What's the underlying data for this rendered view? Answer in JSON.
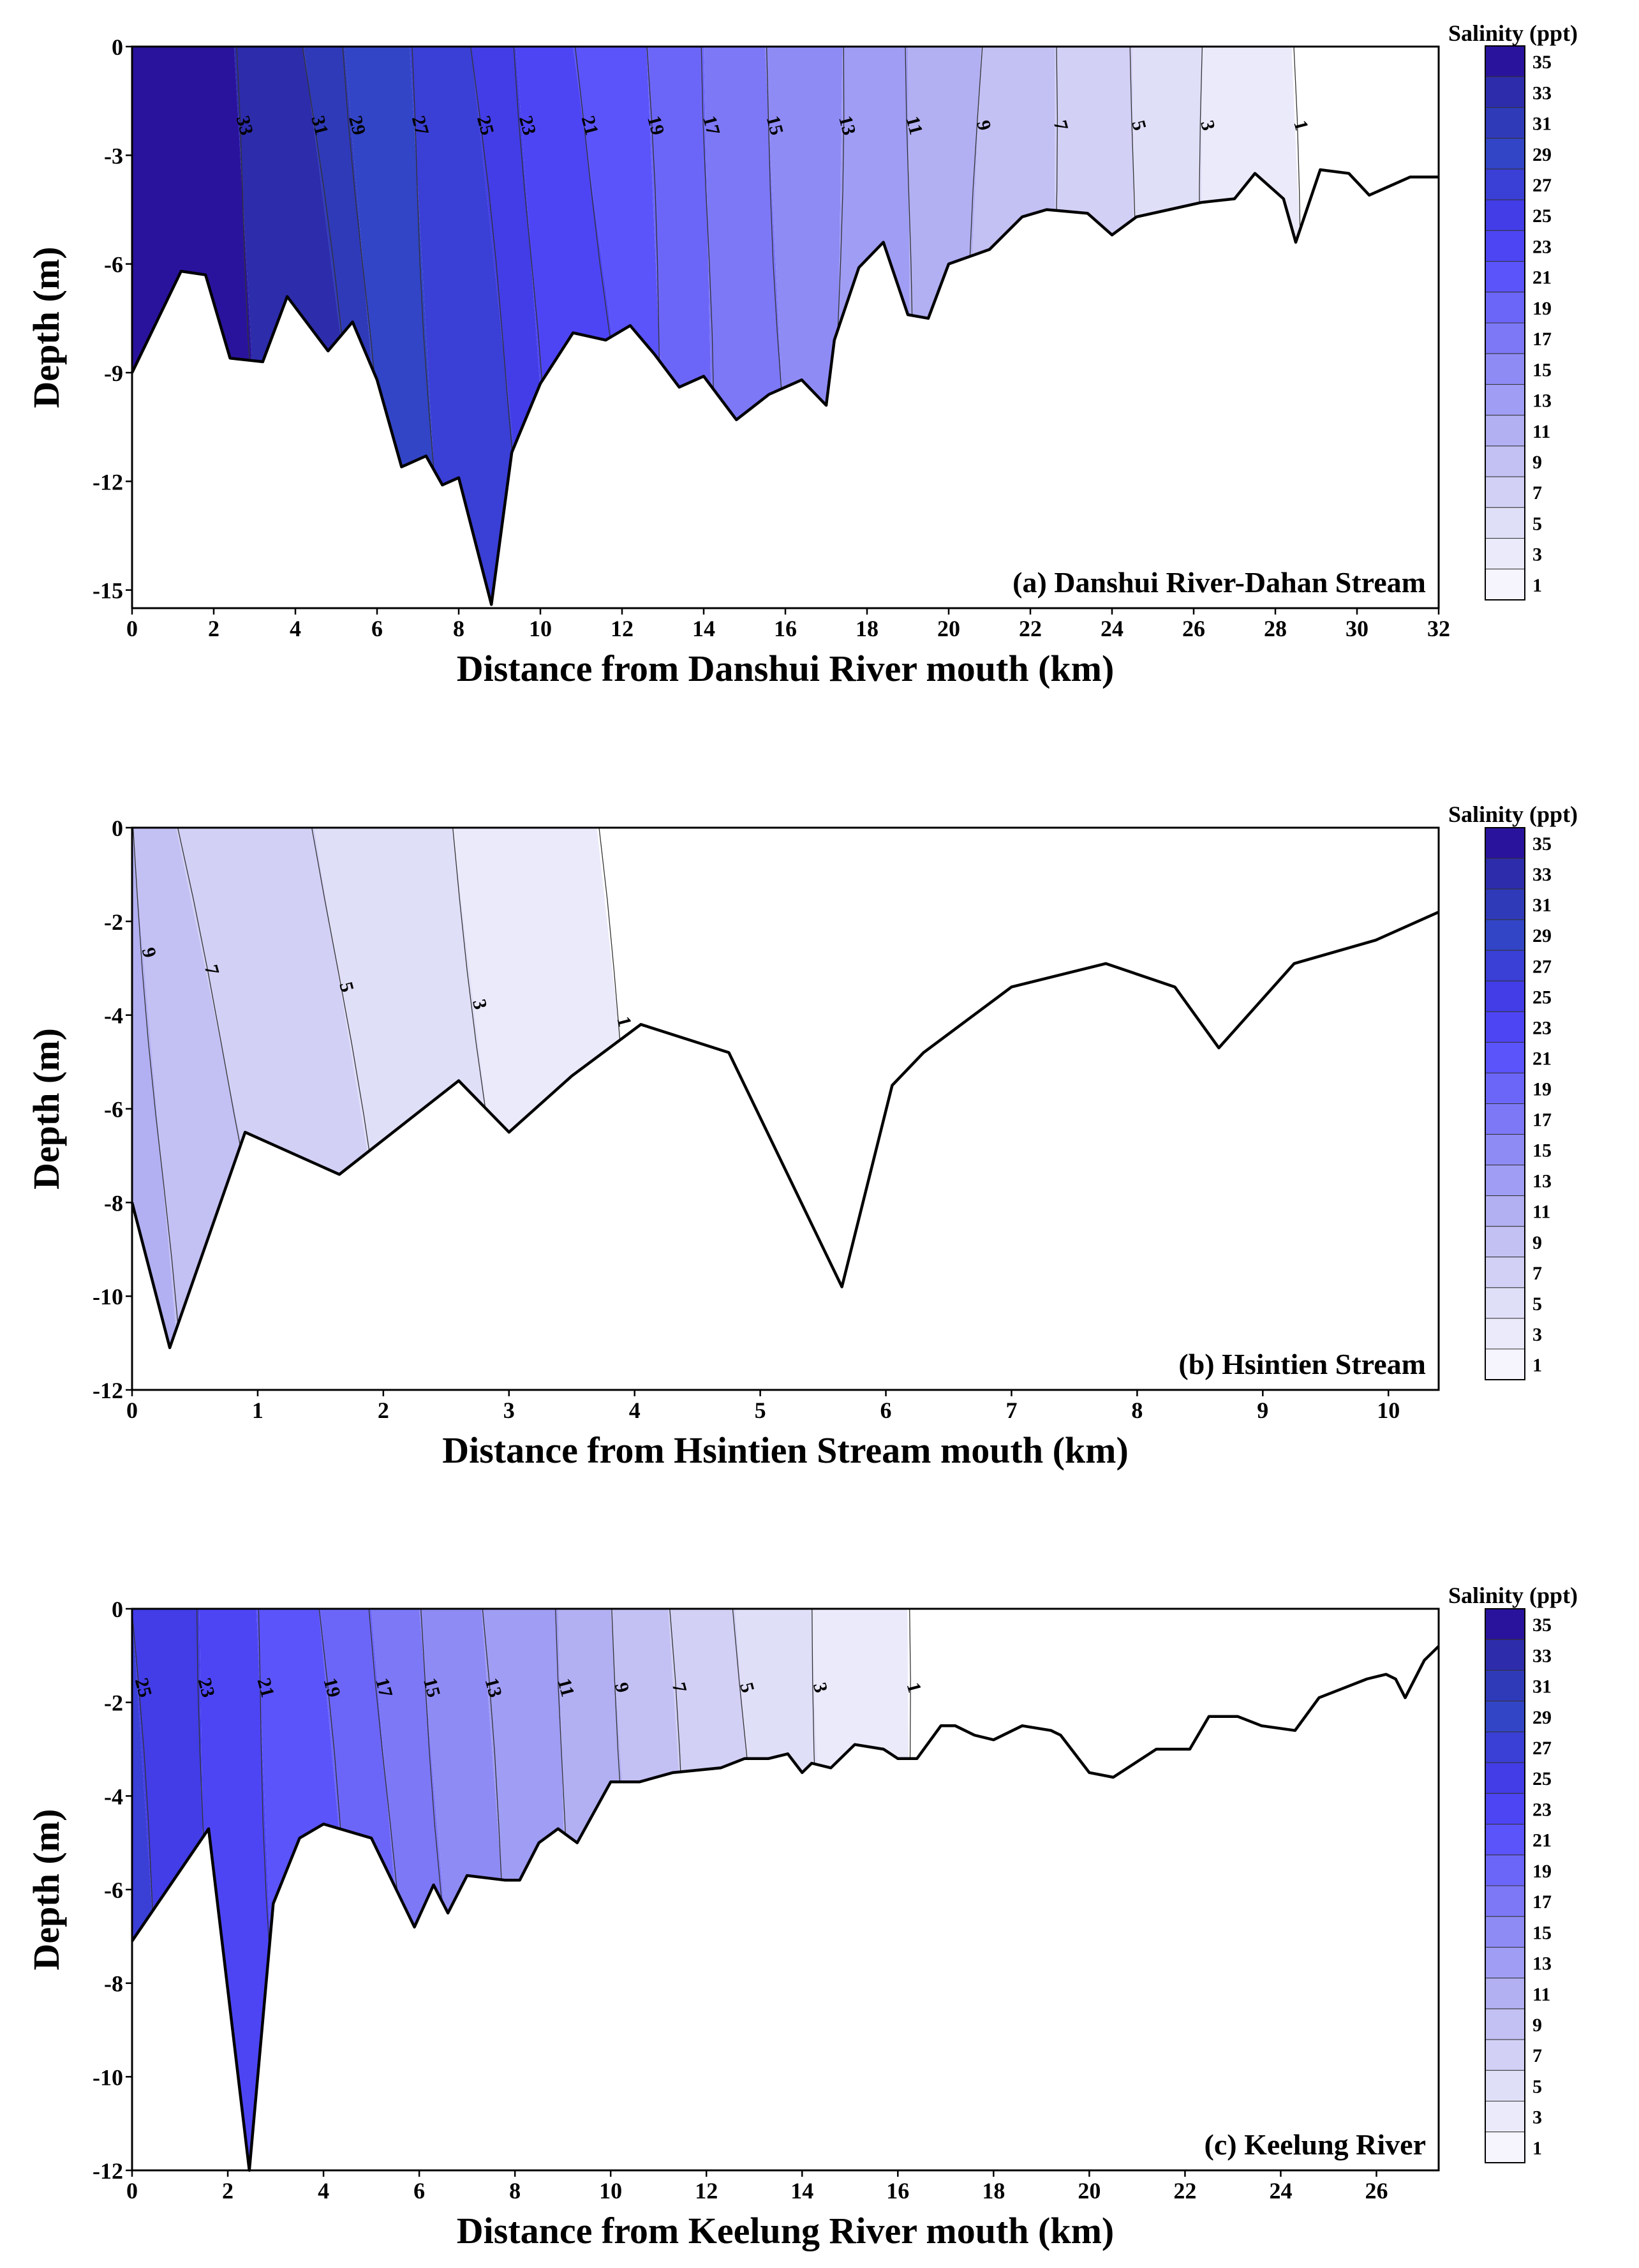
{
  "colors": {
    "scale": [
      "#f6f5fd",
      "#ebeafb",
      "#e0dff8",
      "#d2d0f5",
      "#c3c0f3",
      "#b2b0f2",
      "#a09df4",
      "#8f8bf5",
      "#7d78f6",
      "#6c66f8",
      "#5b54fa",
      "#4d45f4",
      "#423de6",
      "#3a3fd6",
      "#3245c6",
      "#2f3ab9",
      "#2d2cab",
      "#2a139c"
    ]
  },
  "chart_data": [
    {
      "type": "contour",
      "panel_label": "(a) Danshui River-Dahan Stream",
      "xlabel": "Distance from Danshui River mouth (km)",
      "ylabel": "Depth (m)",
      "xlim": [
        0,
        32
      ],
      "ylim": [
        -15.5,
        0
      ],
      "xticks": [
        "0",
        "2",
        "4",
        "6",
        "8",
        "10",
        "12",
        "14",
        "16",
        "18",
        "20",
        "22",
        "24",
        "26",
        "28",
        "30",
        "32"
      ],
      "yticks": [
        "0",
        "-3",
        "-6",
        "-9",
        "-12",
        "-15"
      ],
      "colorbar_title": "Salinity (ppt)",
      "colorbar_levels": [
        "35",
        "33",
        "31",
        "29",
        "27",
        "25",
        "23",
        "21",
        "19",
        "17",
        "15",
        "13",
        "11",
        "9",
        "7",
        "5",
        "3",
        "1"
      ],
      "contour_line_labels": [
        "33",
        "31",
        "29",
        "27",
        "25",
        "23",
        "21",
        "19",
        "17",
        "15",
        "13",
        "11",
        "9",
        "7",
        "5",
        "3",
        "1"
      ],
      "contour_positions": [
        {
          "level": 33,
          "surface_km": 2.5,
          "bottom_km": 3.3
        },
        {
          "level": 31,
          "surface_km": 4.2,
          "bottom_km": 6.0
        },
        {
          "level": 29,
          "surface_km": 5.2,
          "bottom_km": 6.4
        },
        {
          "level": 27,
          "surface_km": 6.8,
          "bottom_km": 7.6
        },
        {
          "level": 25,
          "surface_km": 8.3,
          "bottom_km": 9.8
        },
        {
          "level": 23,
          "surface_km": 9.4,
          "bottom_km": 10.4
        },
        {
          "level": 21,
          "surface_km": 10.8,
          "bottom_km": 12.7
        },
        {
          "level": 19,
          "surface_km": 12.6,
          "bottom_km": 13.2
        },
        {
          "level": 17,
          "surface_km": 14.0,
          "bottom_km": 14.3
        },
        {
          "level": 15,
          "surface_km": 15.5,
          "bottom_km": 16.2
        },
        {
          "level": 13,
          "surface_km": 17.4,
          "bottom_km": 17.2
        },
        {
          "level": 11,
          "surface_km": 19.0,
          "bottom_km": 19.1
        },
        {
          "level": 9,
          "surface_km": 20.8,
          "bottom_km": 20.2
        },
        {
          "level": 7,
          "surface_km": 22.6,
          "bottom_km": 22.6
        },
        {
          "level": 5,
          "surface_km": 24.5,
          "bottom_km": 24.6
        },
        {
          "level": 3,
          "surface_km": 26.2,
          "bottom_km": 26.2
        },
        {
          "level": 1,
          "surface_km": 28.4,
          "bottom_km": 29.0
        }
      ],
      "bottom_depth": [
        [
          0,
          -9.0
        ],
        [
          1.2,
          -6.2
        ],
        [
          1.8,
          -6.3
        ],
        [
          2.4,
          -8.6
        ],
        [
          3.2,
          -8.7
        ],
        [
          3.8,
          -6.9
        ],
        [
          4.8,
          -8.4
        ],
        [
          5.4,
          -7.6
        ],
        [
          6.0,
          -9.2
        ],
        [
          6.6,
          -11.6
        ],
        [
          7.2,
          -11.3
        ],
        [
          7.6,
          -12.1
        ],
        [
          8.0,
          -11.9
        ],
        [
          8.8,
          -15.4
        ],
        [
          9.3,
          -11.2
        ],
        [
          10.0,
          -9.3
        ],
        [
          10.8,
          -7.9
        ],
        [
          11.6,
          -8.1
        ],
        [
          12.2,
          -7.7
        ],
        [
          12.8,
          -8.5
        ],
        [
          13.4,
          -9.4
        ],
        [
          14.0,
          -9.1
        ],
        [
          14.8,
          -10.3
        ],
        [
          15.6,
          -9.6
        ],
        [
          16.4,
          -9.2
        ],
        [
          17.0,
          -9.9
        ],
        [
          17.2,
          -8.1
        ],
        [
          17.8,
          -6.1
        ],
        [
          18.4,
          -5.4
        ],
        [
          19.0,
          -7.4
        ],
        [
          19.5,
          -7.5
        ],
        [
          20.0,
          -6.0
        ],
        [
          21.0,
          -5.6
        ],
        [
          21.8,
          -4.7
        ],
        [
          22.4,
          -4.5
        ],
        [
          23.4,
          -4.6
        ],
        [
          24.0,
          -5.2
        ],
        [
          24.6,
          -4.7
        ],
        [
          25.4,
          -4.5
        ],
        [
          26.2,
          -4.3
        ],
        [
          27.0,
          -4.2
        ],
        [
          27.5,
          -3.5
        ],
        [
          28.2,
          -4.2
        ],
        [
          28.5,
          -5.4
        ],
        [
          29.1,
          -3.4
        ],
        [
          29.8,
          -3.5
        ],
        [
          30.3,
          -4.1
        ],
        [
          31.3,
          -3.6
        ],
        [
          32,
          -3.6
        ]
      ]
    },
    {
      "type": "contour",
      "panel_label": "(b) Hsintien Stream",
      "xlabel": "Distance from Hsintien Stream mouth (km)",
      "ylabel": "Depth (m)",
      "xlim": [
        0,
        10.4
      ],
      "ylim": [
        -12,
        0
      ],
      "xticks": [
        "0",
        "1",
        "2",
        "3",
        "4",
        "5",
        "6",
        "7",
        "8",
        "9",
        "10"
      ],
      "yticks": [
        "0",
        "-2",
        "-4",
        "-6",
        "-8",
        "-10",
        "-12"
      ],
      "colorbar_title": "Salinity (ppt)",
      "colorbar_levels": [
        "35",
        "33",
        "31",
        "29",
        "27",
        "25",
        "23",
        "21",
        "19",
        "17",
        "15",
        "13",
        "11",
        "9",
        "7",
        "5",
        "3",
        "1"
      ],
      "contour_line_labels": [
        "9",
        "7",
        "5",
        "3",
        "1"
      ],
      "contour_positions": [
        {
          "level": 9,
          "surface_km": 0.0,
          "bottom_km": 0.4
        },
        {
          "level": 7,
          "surface_km": 0.35,
          "bottom_km": 1.3
        },
        {
          "level": 5,
          "surface_km": 1.45,
          "bottom_km": 2.2
        },
        {
          "level": 3,
          "surface_km": 2.55,
          "bottom_km": 3.1
        },
        {
          "level": 1,
          "surface_km": 3.7,
          "bottom_km": 4.2
        }
      ],
      "bottom_depth": [
        [
          0,
          -8.0
        ],
        [
          0.3,
          -11.1
        ],
        [
          0.9,
          -6.5
        ],
        [
          1.65,
          -7.4
        ],
        [
          2.6,
          -5.4
        ],
        [
          3.0,
          -6.5
        ],
        [
          3.5,
          -5.3
        ],
        [
          4.05,
          -4.2
        ],
        [
          4.75,
          -4.8
        ],
        [
          5.65,
          -9.8
        ],
        [
          6.05,
          -5.5
        ],
        [
          6.3,
          -4.8
        ],
        [
          6.9,
          -3.6
        ],
        [
          7.0,
          -3.4
        ],
        [
          7.75,
          -2.9
        ],
        [
          8.3,
          -3.4
        ],
        [
          8.65,
          -4.7
        ],
        [
          9.25,
          -2.9
        ],
        [
          9.9,
          -2.4
        ],
        [
          10.4,
          -1.8
        ]
      ]
    },
    {
      "type": "contour",
      "panel_label": "(c) Keelung River",
      "xlabel": "Distance from Keelung River mouth (km)",
      "ylabel": "Depth (m)",
      "xlim": [
        0,
        27.3
      ],
      "ylim": [
        -12,
        0
      ],
      "xticks": [
        "0",
        "2",
        "4",
        "6",
        "8",
        "10",
        "12",
        "14",
        "16",
        "18",
        "20",
        "22",
        "24",
        "26"
      ],
      "yticks": [
        "0",
        "-2",
        "-4",
        "-6",
        "-8",
        "-10",
        "-12"
      ],
      "colorbar_title": "Salinity (ppt)",
      "colorbar_levels": [
        "35",
        "33",
        "31",
        "29",
        "27",
        "25",
        "23",
        "21",
        "19",
        "17",
        "15",
        "13",
        "11",
        "9",
        "7",
        "5",
        "3",
        "1"
      ],
      "contour_line_labels": [
        "25",
        "23",
        "21",
        "19",
        "17",
        "15",
        "13",
        "11",
        "9",
        "7",
        "5",
        "3",
        "1"
      ],
      "contour_positions": [
        {
          "level": 25,
          "surface_km": 0.0,
          "bottom_km": 0.8
        },
        {
          "level": 23,
          "surface_km": 1.4,
          "bottom_km": 1.6
        },
        {
          "level": 21,
          "surface_km": 2.6,
          "bottom_km": 3.1
        },
        {
          "level": 19,
          "surface_km": 3.9,
          "bottom_km": 5.0
        },
        {
          "level": 17,
          "surface_km": 5.0,
          "bottom_km": 6.0
        },
        {
          "level": 15,
          "surface_km": 6.0,
          "bottom_km": 7.0
        },
        {
          "level": 13,
          "surface_km": 7.3,
          "bottom_km": 8.2
        },
        {
          "level": 11,
          "surface_km": 8.9,
          "bottom_km": 9.2
        },
        {
          "level": 9,
          "surface_km": 10.0,
          "bottom_km": 10.8
        },
        {
          "level": 7,
          "surface_km": 11.2,
          "bottom_km": 12.0
        },
        {
          "level": 5,
          "surface_km": 12.6,
          "bottom_km": 13.5
        },
        {
          "level": 3,
          "surface_km": 14.2,
          "bottom_km": 14.6
        },
        {
          "level": 1,
          "surface_km": 16.2,
          "bottom_km": 16.3
        }
      ],
      "bottom_depth": [
        [
          0,
          -7.1
        ],
        [
          0.8,
          -5.9
        ],
        [
          1.6,
          -4.7
        ],
        [
          2.45,
          -12.0
        ],
        [
          2.95,
          -6.3
        ],
        [
          3.5,
          -4.9
        ],
        [
          4.0,
          -4.6
        ],
        [
          5.0,
          -4.9
        ],
        [
          5.9,
          -6.8
        ],
        [
          6.3,
          -5.9
        ],
        [
          6.6,
          -6.5
        ],
        [
          7.0,
          -5.7
        ],
        [
          7.8,
          -5.8
        ],
        [
          8.1,
          -5.8
        ],
        [
          8.5,
          -5.0
        ],
        [
          8.9,
          -4.7
        ],
        [
          9.3,
          -5.0
        ],
        [
          10.0,
          -3.7
        ],
        [
          10.6,
          -3.7
        ],
        [
          11.3,
          -3.5
        ],
        [
          12.3,
          -3.4
        ],
        [
          12.8,
          -3.2
        ],
        [
          13.3,
          -3.2
        ],
        [
          13.7,
          -3.1
        ],
        [
          14.0,
          -3.5
        ],
        [
          14.2,
          -3.3
        ],
        [
          14.6,
          -3.4
        ],
        [
          15.1,
          -2.9
        ],
        [
          15.7,
          -3.0
        ],
        [
          16.0,
          -3.2
        ],
        [
          16.4,
          -3.2
        ],
        [
          16.9,
          -2.5
        ],
        [
          17.2,
          -2.5
        ],
        [
          17.6,
          -2.7
        ],
        [
          18.0,
          -2.8
        ],
        [
          18.6,
          -2.5
        ],
        [
          19.2,
          -2.6
        ],
        [
          19.4,
          -2.7
        ],
        [
          20.0,
          -3.5
        ],
        [
          20.5,
          -3.6
        ],
        [
          21.4,
          -3.0
        ],
        [
          22.1,
          -3.0
        ],
        [
          22.5,
          -2.3
        ],
        [
          23.1,
          -2.3
        ],
        [
          23.6,
          -2.5
        ],
        [
          24.3,
          -2.6
        ],
        [
          24.8,
          -1.9
        ],
        [
          25.3,
          -1.7
        ],
        [
          25.8,
          -1.5
        ],
        [
          26.2,
          -1.4
        ],
        [
          26.4,
          -1.5
        ],
        [
          26.6,
          -1.9
        ],
        [
          27.0,
          -1.1
        ],
        [
          27.3,
          -0.8
        ]
      ]
    }
  ]
}
